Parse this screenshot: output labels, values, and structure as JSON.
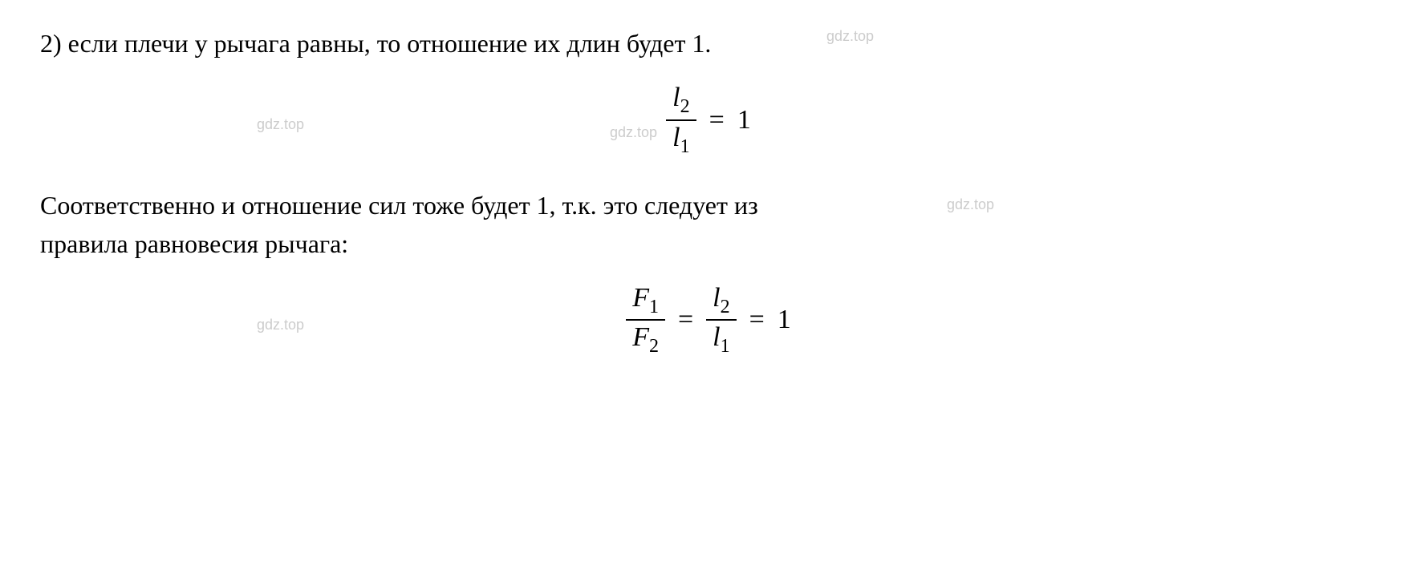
{
  "watermark_text": "gdz.top",
  "watermark_color": "#cccccc",
  "text_color": "#000000",
  "background_color": "#ffffff",
  "font_family": "Times New Roman",
  "paragraph1": {
    "prefix": "2) ",
    "text": "если плечи у рычага равны, то отношение их длин будет 1.",
    "fontsize": 32
  },
  "equation1": {
    "numerator_var": "l",
    "numerator_sub": "2",
    "denominator_var": "l",
    "denominator_sub": "1",
    "equals": "=",
    "result": "1",
    "fontsize": 34,
    "sub_fontsize": 24
  },
  "paragraph2": {
    "line1": "Соответственно и отношение сил тоже будет 1, т.к. это следует из",
    "line2": "правила равновесия рычага:",
    "fontsize": 32
  },
  "equation2": {
    "frac1": {
      "numerator_var": "F",
      "numerator_sub": "1",
      "denominator_var": "F",
      "denominator_sub": "2"
    },
    "equals1": "=",
    "frac2": {
      "numerator_var": "l",
      "numerator_sub": "2",
      "denominator_var": "l",
      "denominator_sub": "1"
    },
    "equals2": "=",
    "result": "1",
    "fontsize": 34
  },
  "watermarks": {
    "count": 5,
    "fontsize": 18
  }
}
